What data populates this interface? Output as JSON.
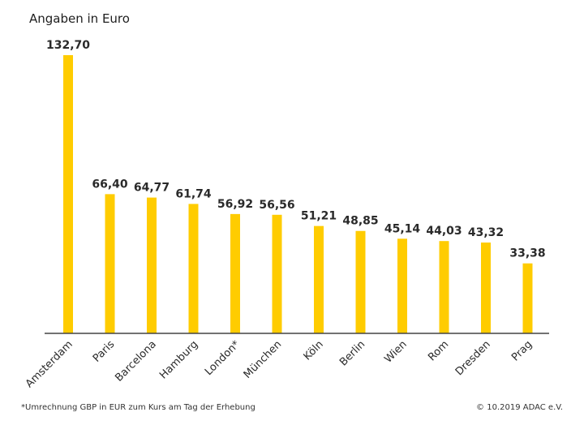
{
  "chart_data": {
    "type": "bar",
    "title": "",
    "subtitle": "Angaben in Euro",
    "xlabel": "",
    "ylabel": "",
    "ylim": [
      0,
      132.7
    ],
    "grid": false,
    "legend": "none",
    "bar_color": "#FFCC00",
    "categories": [
      "Amsterdam",
      "Paris",
      "Barcelona",
      "Hamburg",
      "London*",
      "München",
      "Köln",
      "Berlin",
      "Wien",
      "Rom",
      "Dresden",
      "Prag"
    ],
    "values": [
      132.7,
      66.4,
      64.77,
      61.74,
      56.92,
      56.56,
      51.21,
      48.85,
      45.14,
      44.03,
      43.32,
      33.38
    ],
    "value_labels": [
      "132,70",
      "66,40",
      "64,77",
      "61,74",
      "56,92",
      "56,56",
      "51,21",
      "48,85",
      "45,14",
      "44,03",
      "43,32",
      "33,38"
    ]
  },
  "footer": {
    "footnote": "*Umrechnung GBP in EUR zum Kurs am Tag der Erhebung",
    "copyright": "© 10.2019  ADAC e.V."
  }
}
